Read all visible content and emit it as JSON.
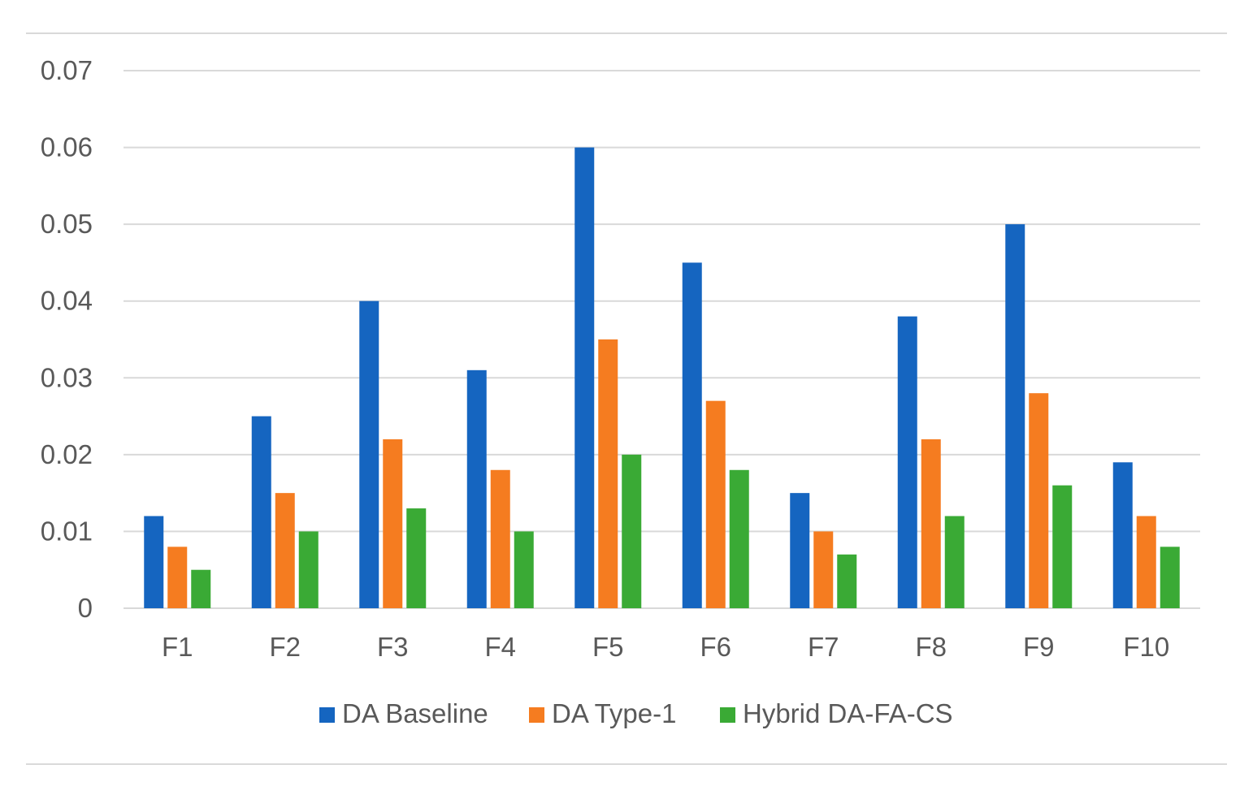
{
  "chart_data": {
    "type": "bar",
    "title": "",
    "xlabel": "",
    "ylabel": "",
    "categories": [
      "F1",
      "F2",
      "F3",
      "F4",
      "F5",
      "F6",
      "F7",
      "F8",
      "F9",
      "F10"
    ],
    "series": [
      {
        "name": "DA Baseline",
        "color": "#1565c0",
        "values": [
          0.012,
          0.025,
          0.04,
          0.031,
          0.06,
          0.045,
          0.015,
          0.038,
          0.05,
          0.019
        ]
      },
      {
        "name": "DA Type-1",
        "color": "#f57c20",
        "values": [
          0.008,
          0.015,
          0.022,
          0.018,
          0.035,
          0.027,
          0.01,
          0.022,
          0.028,
          0.012
        ]
      },
      {
        "name": "Hybrid DA-FA-CS",
        "color": "#3aaa35",
        "values": [
          0.005,
          0.01,
          0.013,
          0.01,
          0.02,
          0.018,
          0.007,
          0.012,
          0.016,
          0.008
        ]
      }
    ],
    "ylim": [
      0,
      0.07
    ],
    "y_ticks": [
      "0",
      "0.01",
      "0.02",
      "0.03",
      "0.04",
      "0.05",
      "0.06",
      "0.07"
    ],
    "grid": true,
    "legend_position": "bottom"
  }
}
